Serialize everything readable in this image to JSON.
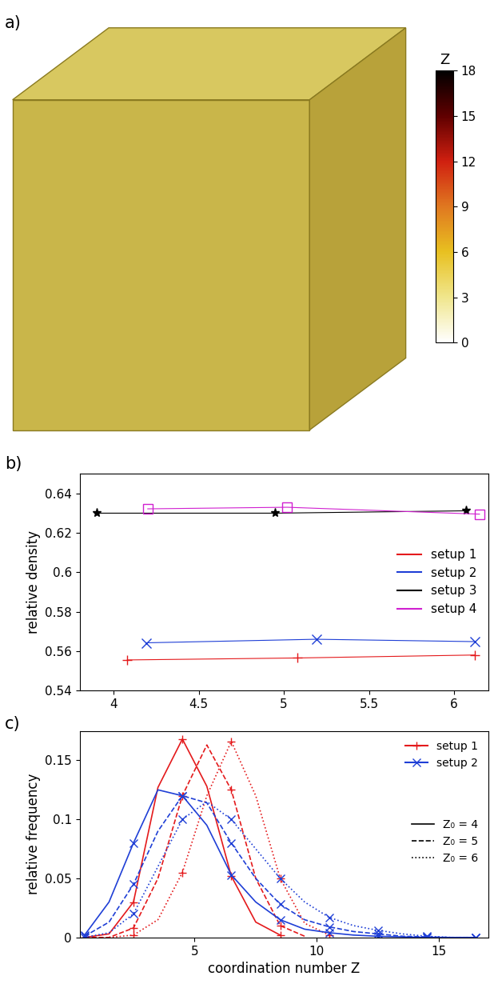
{
  "chart_data": [
    {
      "type": "colorbar_image",
      "title": "a)",
      "colorbar": {
        "label": "Z",
        "range": [
          0,
          18
        ],
        "ticks": [
          0,
          3,
          6,
          9,
          12,
          15,
          18
        ]
      }
    },
    {
      "type": "line",
      "title": "b)",
      "y_label": "relative density",
      "xlim": [
        3.8,
        6.2
      ],
      "xticks": [
        4,
        4.5,
        5,
        5.5,
        6
      ],
      "ylim": [
        0.54,
        0.65
      ],
      "yticks": [
        0.54,
        0.56,
        0.58,
        0.6,
        0.62,
        0.64
      ],
      "legend": "center right",
      "series": [
        {
          "name": "setup 1",
          "color": "#e41a1c",
          "marker": "plus",
          "x": [
            4.08,
            5.08,
            6.12
          ],
          "values": [
            0.5555,
            0.5565,
            0.558
          ]
        },
        {
          "name": "setup 2",
          "color": "#1f3fd6",
          "marker": "x",
          "x": [
            4.19,
            5.19,
            6.12
          ],
          "values": [
            0.5642,
            0.566,
            0.5648
          ]
        },
        {
          "name": "setup 3",
          "color": "#000000",
          "marker": "star",
          "x": [
            3.9,
            4.95,
            6.07
          ],
          "values": [
            0.63,
            0.63,
            0.6312
          ]
        },
        {
          "name": "setup 4",
          "color": "#d020d0",
          "marker": "square",
          "x": [
            4.2,
            5.02,
            6.15
          ],
          "values": [
            0.6322,
            0.633,
            0.6295
          ]
        }
      ]
    },
    {
      "type": "line",
      "title": "c)",
      "x_label": "coordination number Z",
      "y_label": "relative frequency",
      "xlim": [
        0.3,
        17
      ],
      "xticks": [
        5,
        10,
        15
      ],
      "ylim": [
        0,
        0.175
      ],
      "yticks": [
        0,
        0.05,
        0.1,
        0.15
      ],
      "legend": "upper right",
      "x": [
        0.5,
        1.5,
        2.5,
        3.5,
        4.5,
        5.5,
        6.5,
        7.5,
        8.5,
        9.5,
        10.5,
        11.5,
        12.5,
        13.5,
        14.5,
        15.5,
        16.5
      ],
      "series": [
        {
          "name": "setup 1",
          "color": "#e41a1c",
          "marker": "plus",
          "curves": [
            {
              "name": "Z₀ = 4",
              "line_style": "solid",
              "values": [
                0.0,
                0.003,
                0.03,
                0.127,
                0.168,
                0.128,
                0.052,
                0.013,
                0.002,
                null,
                null,
                null,
                null,
                null,
                null,
                null,
                null
              ]
            },
            {
              "name": "Z₀ = 5",
              "line_style": "dashed",
              "values": [
                0.0,
                0.0,
                0.008,
                0.05,
                0.12,
                0.163,
                0.125,
                0.05,
                0.01,
                0.001,
                null,
                null,
                null,
                null,
                null,
                null,
                null
              ]
            },
            {
              "name": "Z₀ = 6",
              "line_style": "dotted",
              "values": [
                null,
                0.0,
                0.002,
                0.015,
                0.055,
                0.12,
                0.166,
                0.12,
                0.05,
                0.012,
                0.002,
                null,
                null,
                null,
                null,
                null,
                null
              ]
            }
          ]
        },
        {
          "name": "setup 2",
          "color": "#1f3fd6",
          "marker": "x",
          "curves": [
            {
              "name": "Z₀ = 4",
              "line_style": "solid",
              "values": [
                0.002,
                0.03,
                0.08,
                0.125,
                0.12,
                0.095,
                0.053,
                0.03,
                0.015,
                0.007,
                0.004,
                0.002,
                0.001,
                0.0005,
                0.0,
                0.0,
                0.0
              ]
            },
            {
              "name": "Z₀ = 5",
              "line_style": "dashed",
              "values": [
                0.001,
                0.013,
                0.045,
                0.09,
                0.12,
                0.114,
                0.08,
                0.05,
                0.028,
                0.015,
                0.009,
                0.005,
                0.003,
                0.001,
                0.0005,
                0.0,
                0.0
              ]
            },
            {
              "name": "Z₀ = 6",
              "line_style": "dotted",
              "values": [
                0.0,
                0.004,
                0.02,
                0.06,
                0.1,
                0.115,
                0.1,
                0.075,
                0.05,
                0.03,
                0.017,
                0.01,
                0.006,
                0.003,
                0.001,
                0.0,
                0.0
              ]
            }
          ]
        }
      ]
    }
  ]
}
